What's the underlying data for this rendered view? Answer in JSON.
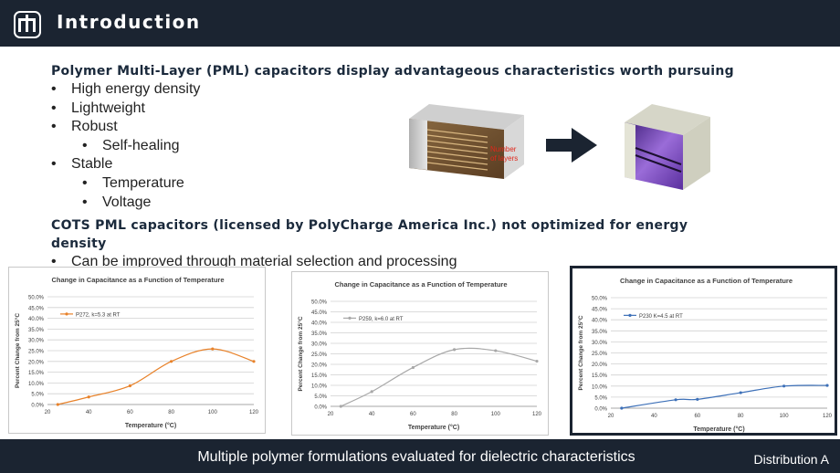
{
  "header": {
    "title": "Introduction",
    "logo_icon": "thunderbird-logo-icon"
  },
  "main": {
    "heading1": "Polymer Multi-Layer (PML) capacitors display advantageous characteristics worth pursuing",
    "bullets1": [
      {
        "text": "High energy density",
        "level": 1
      },
      {
        "text": "Lightweight",
        "level": 1
      },
      {
        "text": "Robust",
        "level": 1
      },
      {
        "text": "Self-healing",
        "level": 2
      },
      {
        "text": "Stable",
        "level": 1
      },
      {
        "text": "Temperature",
        "level": 2
      },
      {
        "text": "Voltage",
        "level": 2
      }
    ],
    "heading2": "COTS PML capacitors (licensed by PolyCharge America Inc.) not optimized for energy density",
    "bullets2": [
      {
        "text": "Can be improved through material selection and processing",
        "level": 1
      }
    ],
    "illustration": {
      "annotation": [
        "Number",
        "of layers"
      ]
    }
  },
  "chart_data": [
    {
      "type": "line",
      "title": "Change in Capacitance as a Function of Temperature",
      "xlabel": "Temperature (°C)",
      "ylabel": "Percent Change from 25°C",
      "xlim": [
        20,
        120
      ],
      "ylim": [
        0,
        50
      ],
      "xticks": [
        "20",
        "40",
        "60",
        "80",
        "100",
        "120"
      ],
      "yticks": [
        "0.0%",
        "5.0%",
        "10.0%",
        "15.0%",
        "20.0%",
        "25.0%",
        "30.0%",
        "35.0%",
        "40.0%",
        "45.0%",
        "50.0%"
      ],
      "legend_position": "top-left",
      "grid": true,
      "series": [
        {
          "name": "P272, k=5.3 at RT",
          "color": "#e8822a",
          "x": [
            25,
            40,
            60,
            80,
            100,
            120
          ],
          "y": [
            0.0,
            3.5,
            8.7,
            20.0,
            25.8,
            20.0
          ]
        }
      ]
    },
    {
      "type": "line",
      "title": "Change in Capacitance as a Function of Temperature",
      "xlabel": "Temperature (°C)",
      "ylabel": "Percent Change from 25°C",
      "xlim": [
        20,
        120
      ],
      "ylim": [
        0,
        50
      ],
      "xticks": [
        "20",
        "40",
        "60",
        "80",
        "100",
        "120"
      ],
      "yticks": [
        "0.0%",
        "5.0%",
        "10.0%",
        "15.0%",
        "20.0%",
        "25.0%",
        "30.0%",
        "35.0%",
        "40.0%",
        "45.0%",
        "50.0%"
      ],
      "legend_position": "top-left",
      "grid": true,
      "series": [
        {
          "name": "P259, k=6.0 at RT",
          "color": "#a8a8a8",
          "x": [
            25,
            40,
            60,
            80,
            100,
            120
          ],
          "y": [
            0.0,
            7.0,
            18.5,
            27.0,
            26.5,
            21.5
          ]
        }
      ]
    },
    {
      "type": "line",
      "title": "Change in Capacitance as a Function of Temperature",
      "xlabel": "Temperature (°C)",
      "ylabel": "Percent Change from 25°C",
      "xlim": [
        20,
        120
      ],
      "ylim": [
        0,
        50
      ],
      "xticks": [
        "20",
        "40",
        "60",
        "80",
        "100",
        "120"
      ],
      "yticks": [
        "0.0%",
        "5.0%",
        "10.0%",
        "15.0%",
        "20.0%",
        "25.0%",
        "30.0%",
        "35.0%",
        "40.0%",
        "45.0%",
        "50.0%"
      ],
      "legend_position": "top-left",
      "grid": true,
      "series": [
        {
          "name": "P230 K=4.5 at RT",
          "color": "#3d70b8",
          "x": [
            25,
            50,
            60,
            80,
            100,
            120
          ],
          "y": [
            0.0,
            3.8,
            4.0,
            7.0,
            10.0,
            10.3
          ]
        }
      ]
    }
  ],
  "footer": {
    "caption": "Multiple polymer formulations evaluated for dielectric characteristics",
    "distribution": "Distribution A"
  }
}
